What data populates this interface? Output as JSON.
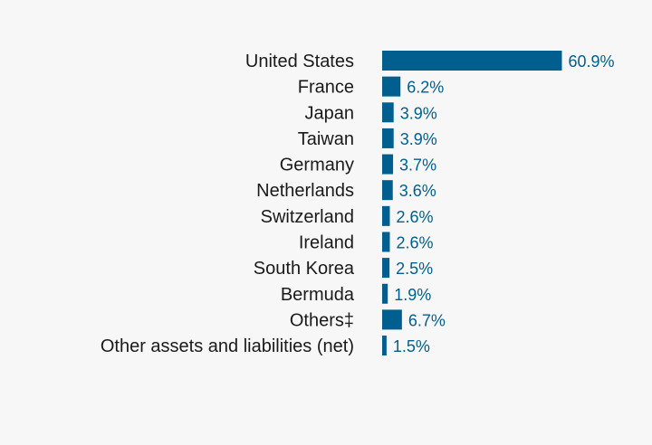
{
  "colors": {
    "bar": "#005f8f",
    "value_text": "#005f8f",
    "label_text": "#1a1a1a",
    "background": "#f7f7f7"
  },
  "chart_data": {
    "type": "bar",
    "orientation": "horizontal",
    "title": "",
    "xlabel": "",
    "ylabel": "",
    "grid": false,
    "xlim": [
      0,
      60.9
    ],
    "unit_suffix": "%",
    "categories": [
      "United States",
      "France",
      "Japan",
      "Taiwan",
      "Germany",
      "Netherlands",
      "Switzerland",
      "Ireland",
      "South Korea",
      "Bermuda",
      "Others‡",
      "Other assets and liabilities (net)"
    ],
    "values": [
      60.9,
      6.2,
      3.9,
      3.9,
      3.7,
      3.6,
      2.6,
      2.6,
      2.5,
      1.9,
      6.7,
      1.5
    ],
    "value_labels": [
      "60.9%",
      "6.2%",
      "3.9%",
      "3.9%",
      "3.7%",
      "3.6%",
      "2.6%",
      "2.6%",
      "2.5%",
      "1.9%",
      "6.7%",
      "1.5%"
    ]
  }
}
